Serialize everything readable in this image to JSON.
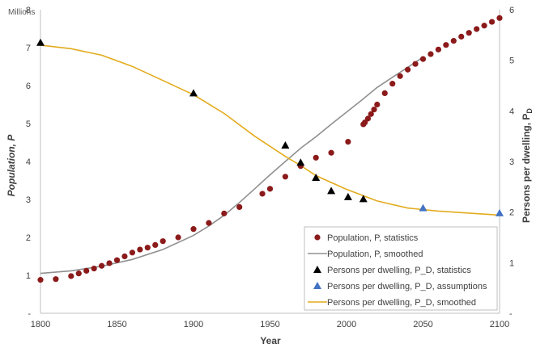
{
  "chart_data": {
    "type": "scatter",
    "xlabel": "Year",
    "ylabel_left": "Population, P",
    "ylabel_left_unit": "Millions",
    "ylabel_right": "Persons per dwelling, P",
    "ylabel_right_subscript": "D",
    "xlim": [
      1800,
      2100
    ],
    "x_ticks": [
      "1800",
      "1850",
      "1900",
      "1950",
      "2000",
      "2050",
      "2100"
    ],
    "ylim_left": [
      0,
      8
    ],
    "y_ticks_left": [
      "-",
      "1",
      "2",
      "3",
      "4",
      "5",
      "6",
      "7",
      "8"
    ],
    "ylim_right": [
      0,
      6
    ],
    "y_ticks_right": [
      "-",
      "1",
      "2",
      "3",
      "4",
      "5",
      "6"
    ],
    "grid": false,
    "legend_position": "bottom-right",
    "colors": {
      "population_points": "#8b1a1a",
      "population_smoothed": "#909090",
      "ppd_statistics": "#000000",
      "ppd_assumptions": "#4472c4",
      "ppd_smoothed": "#e3ac1e",
      "axis": "#bfbfbf"
    },
    "series": [
      {
        "name": "Population, P, statistics",
        "axis": "left",
        "marker": "circle",
        "x": [
          1800,
          1810,
          1820,
          1825,
          1830,
          1835,
          1840,
          1845,
          1850,
          1855,
          1860,
          1865,
          1870,
          1875,
          1880,
          1890,
          1900,
          1910,
          1920,
          1930,
          1945,
          1950,
          1960,
          1970,
          1980,
          1990,
          2001,
          2011,
          2012,
          2014,
          2016,
          2018,
          2020,
          2025,
          2030,
          2035,
          2040,
          2045,
          2050,
          2055,
          2060,
          2065,
          2070,
          2075,
          2080,
          2085,
          2090,
          2095,
          2100
        ],
        "y": [
          0.88,
          0.9,
          0.98,
          1.05,
          1.12,
          1.18,
          1.25,
          1.32,
          1.4,
          1.5,
          1.6,
          1.68,
          1.73,
          1.8,
          1.9,
          2.0,
          2.22,
          2.38,
          2.63,
          2.8,
          3.15,
          3.28,
          3.6,
          3.88,
          4.1,
          4.23,
          4.52,
          4.98,
          5.03,
          5.13,
          5.25,
          5.37,
          5.5,
          5.8,
          6.05,
          6.25,
          6.42,
          6.57,
          6.7,
          6.83,
          6.95,
          7.07,
          7.18,
          7.29,
          7.39,
          7.49,
          7.58,
          7.68,
          7.78
        ]
      },
      {
        "name": "Population, P, smoothed",
        "axis": "left",
        "marker": "line",
        "x": [
          1800,
          1820,
          1840,
          1860,
          1880,
          1900,
          1910,
          1920,
          1930,
          1940,
          1950,
          1960,
          1970,
          1980,
          1990,
          2000,
          2010,
          2020,
          2030,
          2040,
          2050
        ],
        "y": [
          1.05,
          1.12,
          1.24,
          1.42,
          1.68,
          2.05,
          2.3,
          2.58,
          2.92,
          3.28,
          3.65,
          4.0,
          4.35,
          4.65,
          4.98,
          5.3,
          5.62,
          5.95,
          6.22,
          6.48,
          6.75
        ]
      },
      {
        "name": "Persons per dwelling, P_D, statistics",
        "axis": "right",
        "marker": "triangle",
        "x": [
          1800,
          1900,
          1960,
          1970,
          1980,
          1990,
          2001,
          2011
        ],
        "y": [
          5.35,
          4.35,
          3.32,
          2.98,
          2.68,
          2.42,
          2.3,
          2.26
        ]
      },
      {
        "name": "Persons per dwelling, P_D, assumptions",
        "axis": "right",
        "marker": "triangle",
        "x": [
          2050,
          2100
        ],
        "y": [
          2.08,
          1.98
        ]
      },
      {
        "name": "Persons per dwelling, P_D, smoothed",
        "axis": "right",
        "marker": "line",
        "x": [
          1800,
          1820,
          1840,
          1860,
          1880,
          1900,
          1920,
          1940,
          1960,
          1970,
          1980,
          2000,
          2020,
          2040,
          2060,
          2080,
          2100
        ],
        "y": [
          5.3,
          5.23,
          5.1,
          4.88,
          4.6,
          4.32,
          3.95,
          3.5,
          3.1,
          2.92,
          2.72,
          2.45,
          2.22,
          2.08,
          2.02,
          1.98,
          1.94
        ]
      }
    ]
  }
}
